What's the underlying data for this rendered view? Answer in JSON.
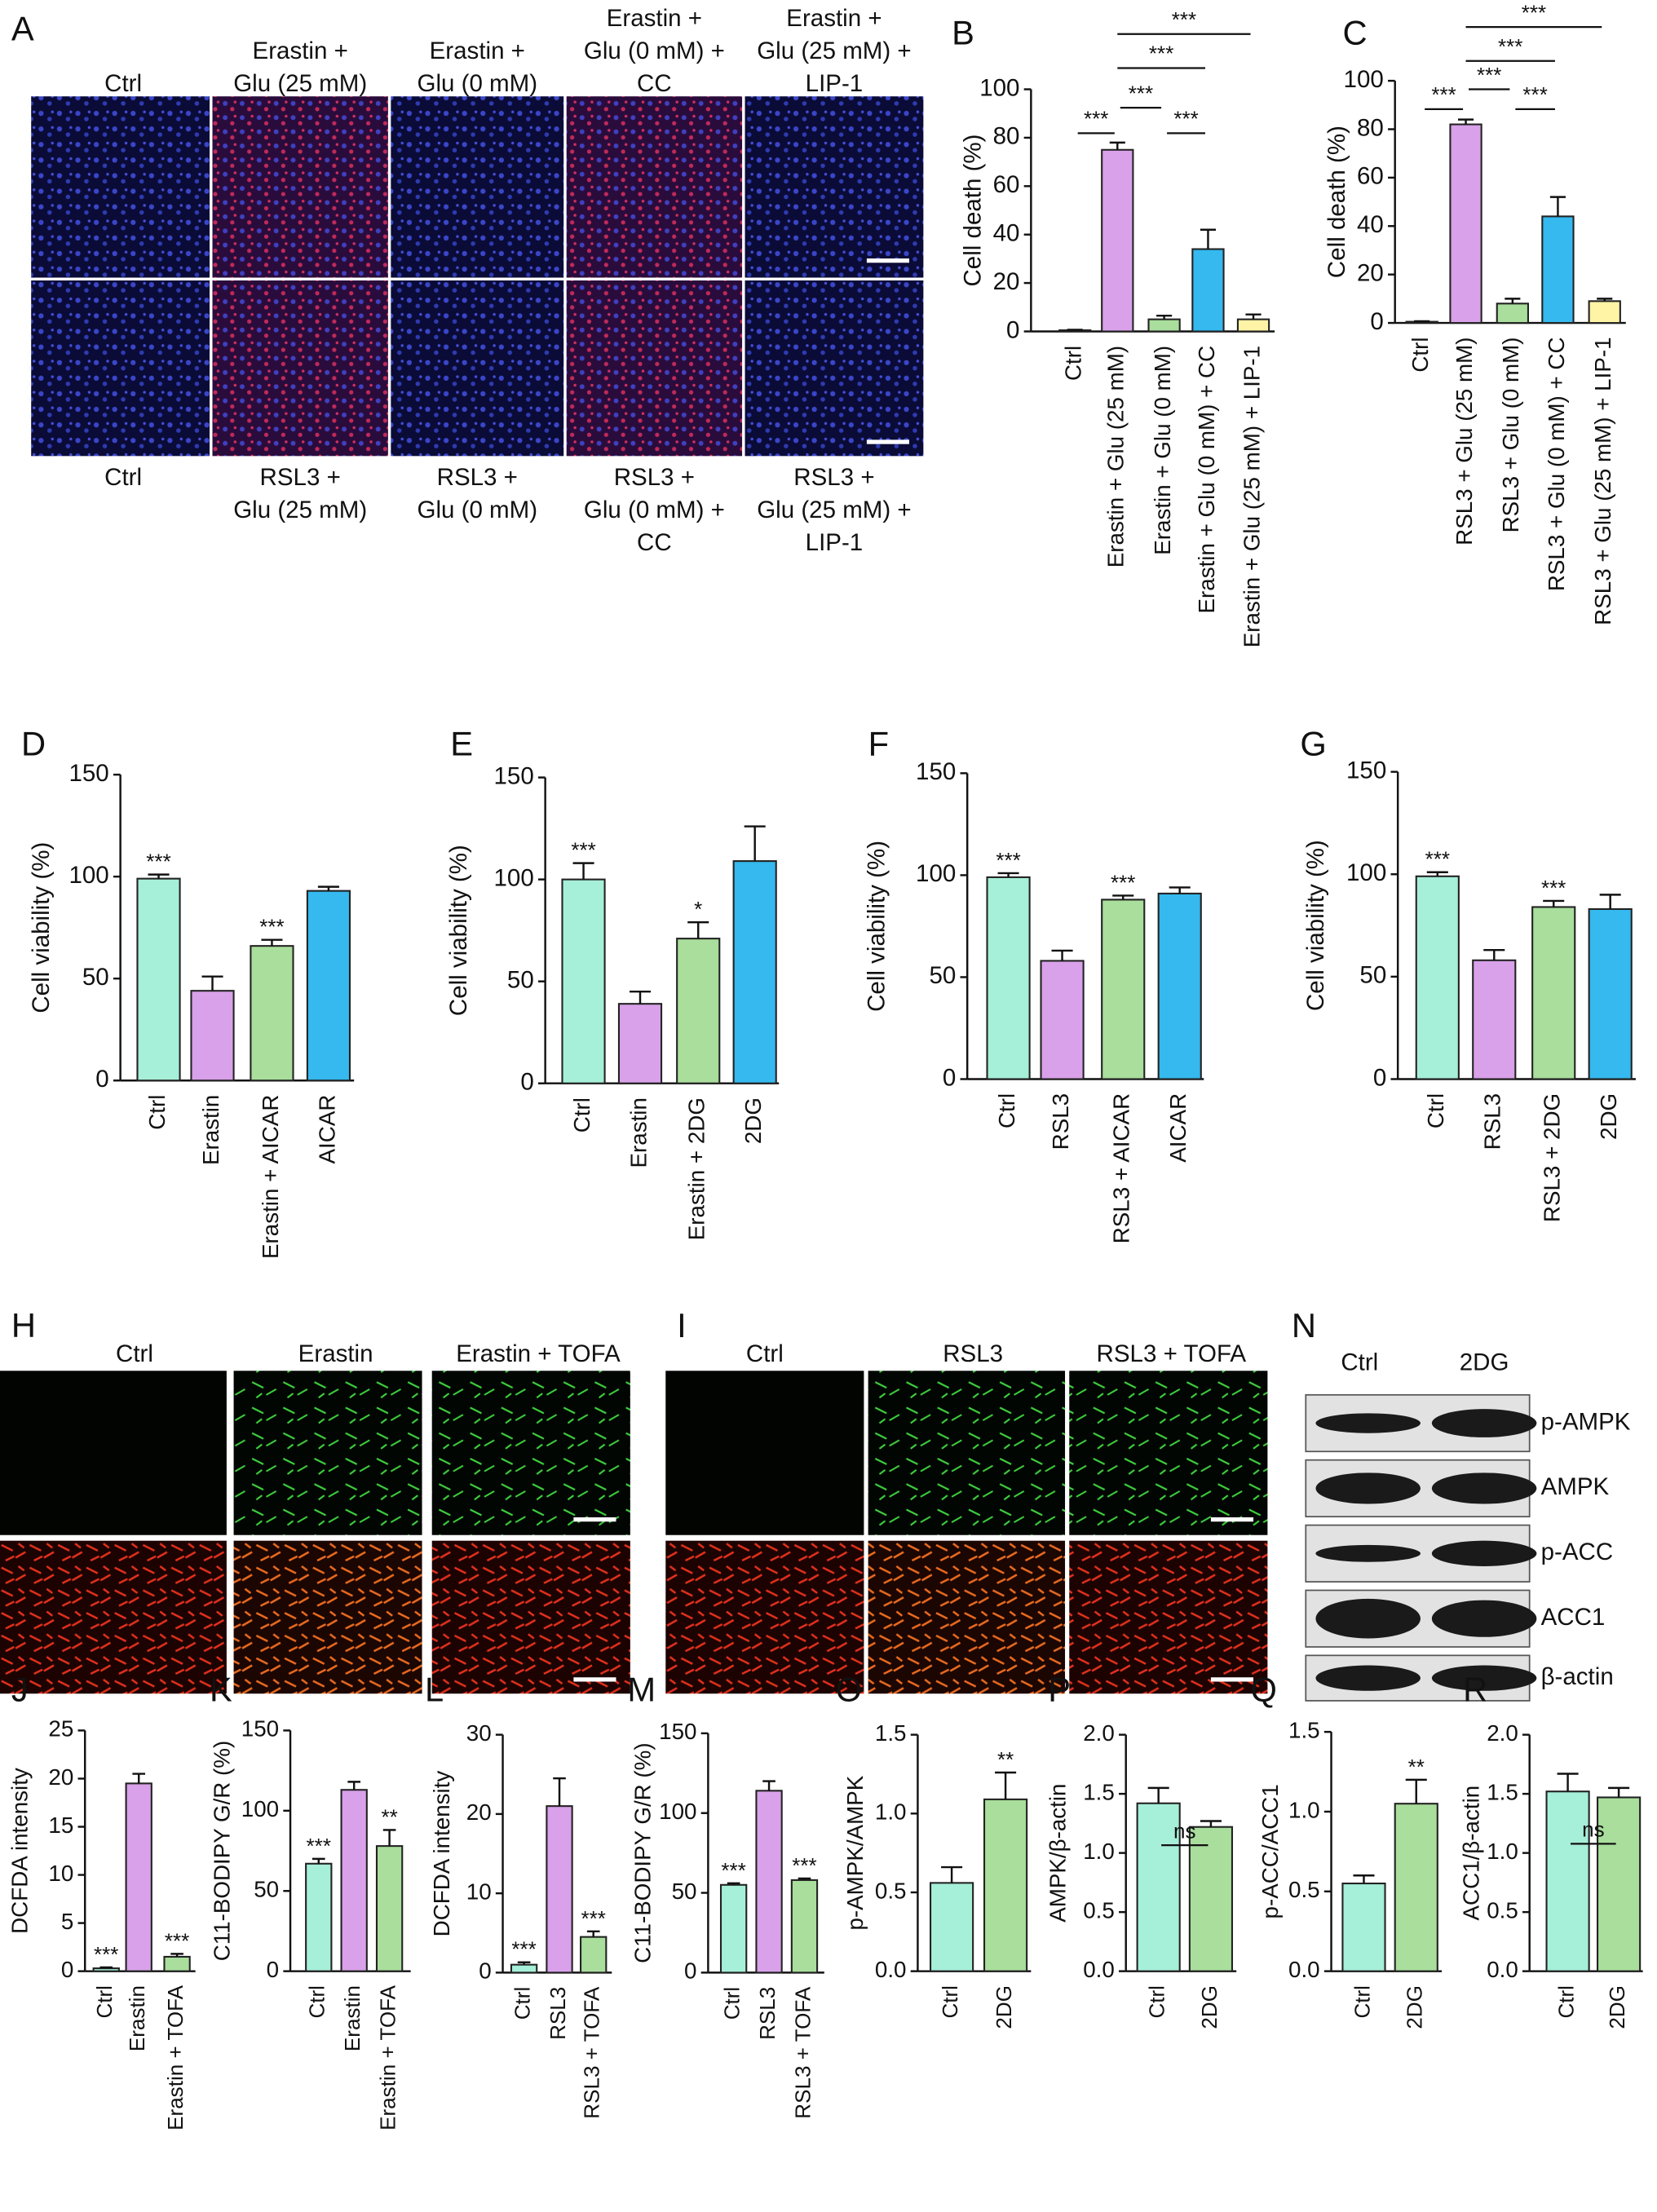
{
  "panels": {
    "A": {
      "panel": "A",
      "top_labels": [
        [
          "Ctrl"
        ],
        [
          "Erastin +",
          "Glu (25 mM)"
        ],
        [
          "Erastin +",
          "Glu (0 mM)"
        ],
        [
          "Erastin +",
          "Glu (0 mM) +",
          "CC"
        ],
        [
          "Erastin +",
          "Glu (25 mM) +",
          "LIP-1"
        ]
      ],
      "bottom_labels": [
        [
          "Ctrl"
        ],
        [
          "RSL3 +",
          "Glu (25 mM)"
        ],
        [
          "RSL3 +",
          "Glu (0 mM)"
        ],
        [
          "RSL3 +",
          "Glu (0 mM) +",
          "CC"
        ],
        [
          "RSL3 +",
          "Glu (25 mM) +",
          "LIP-1"
        ]
      ]
    },
    "H": {
      "panel": "H",
      "labels": [
        "Ctrl",
        "Erastin",
        "Erastin + TOFA"
      ]
    },
    "I": {
      "panel": "I",
      "labels": [
        "Ctrl",
        "RSL3",
        "RSL3 + TOFA"
      ]
    },
    "N": {
      "panel": "N",
      "lanes": [
        "Ctrl",
        "2DG"
      ],
      "bands": [
        "p-AMPK",
        "AMPK",
        "p-ACC",
        "ACC1",
        "β-actin"
      ]
    }
  },
  "chart_data": [
    {
      "panel": "B",
      "type": "bar",
      "ylabel": "Cell death (%)",
      "categories": [
        "Ctrl",
        "Erastin + Glu (25 mM)",
        "Erastin + Glu (0 mM)",
        "Erastin + Glu (0 mM) + CC",
        "Erastin + Glu (25 mM) + LIP-1"
      ],
      "values": [
        0.5,
        75,
        5,
        34,
        5
      ],
      "errors": [
        0.2,
        3,
        1.5,
        8,
        2
      ],
      "colors": [
        "#a6efd8",
        "#d9a1e9",
        "#a9de9c",
        "#35b9ee",
        "#fff3a6"
      ],
      "ylim": [
        0,
        100
      ],
      "yticks": [
        0,
        20,
        40,
        60,
        80,
        100
      ],
      "comparisons": [
        "***",
        "***",
        "***",
        "***",
        "***"
      ]
    },
    {
      "panel": "C",
      "type": "bar",
      "ylabel": "Cell death (%)",
      "categories": [
        "Ctrl",
        "RSL3 + Glu (25 mM)",
        "RSL3 + Glu (0 mM)",
        "RSL3 + Glu (0 mM) + CC",
        "RSL3 + Glu (25 mM) + LIP-1"
      ],
      "values": [
        0.5,
        82,
        8,
        44,
        9
      ],
      "errors": [
        0.2,
        2,
        2,
        8,
        1
      ],
      "colors": [
        "#a6efd8",
        "#d9a1e9",
        "#a9de9c",
        "#35b9ee",
        "#fff3a6"
      ],
      "ylim": [
        0,
        100
      ],
      "yticks": [
        0,
        20,
        40,
        60,
        80,
        100
      ],
      "comparisons": [
        "***",
        "***",
        "***",
        "***",
        "***"
      ]
    },
    {
      "panel": "D",
      "type": "bar",
      "ylabel": "Cell viability (%)",
      "categories": [
        "Ctrl",
        "Erastin",
        "Erastin + AICAR",
        "AICAR"
      ],
      "values": [
        99,
        44,
        66,
        93
      ],
      "errors": [
        2,
        7,
        3,
        2
      ],
      "colors": [
        "#a6efd8",
        "#d9a1e9",
        "#a9de9c",
        "#35b9ee"
      ],
      "ylim": [
        0,
        150
      ],
      "yticks": [
        0,
        50,
        100,
        150
      ],
      "significance": [
        "***",
        null,
        "***",
        null
      ]
    },
    {
      "panel": "E",
      "type": "bar",
      "ylabel": "Cell viability (%)",
      "categories": [
        "Ctrl",
        "Erastin",
        "Erastin + 2DG",
        "2DG"
      ],
      "values": [
        100,
        39,
        71,
        109
      ],
      "errors": [
        8,
        6,
        8,
        17
      ],
      "colors": [
        "#a6efd8",
        "#d9a1e9",
        "#a9de9c",
        "#35b9ee"
      ],
      "ylim": [
        0,
        150
      ],
      "yticks": [
        0,
        50,
        100,
        150
      ],
      "significance": [
        "***",
        null,
        "*",
        null
      ]
    },
    {
      "panel": "F",
      "type": "bar",
      "ylabel": "Cell viability (%)",
      "categories": [
        "Ctrl",
        "RSL3",
        "RSL3 + AICAR",
        "AICAR"
      ],
      "values": [
        99,
        58,
        88,
        91
      ],
      "errors": [
        2,
        5,
        2,
        3
      ],
      "colors": [
        "#a6efd8",
        "#d9a1e9",
        "#a9de9c",
        "#35b9ee"
      ],
      "ylim": [
        0,
        150
      ],
      "yticks": [
        0,
        50,
        100,
        150
      ],
      "significance": [
        "***",
        null,
        "***",
        null
      ]
    },
    {
      "panel": "G",
      "type": "bar",
      "ylabel": "Cell viability (%)",
      "categories": [
        "Ctrl",
        "RSL3",
        "RSL3 + 2DG",
        "2DG"
      ],
      "values": [
        99,
        58,
        84,
        83
      ],
      "errors": [
        2,
        5,
        3,
        7
      ],
      "colors": [
        "#a6efd8",
        "#d9a1e9",
        "#a9de9c",
        "#35b9ee"
      ],
      "ylim": [
        0,
        150
      ],
      "yticks": [
        0,
        50,
        100,
        150
      ],
      "significance": [
        "***",
        null,
        "***",
        null
      ]
    },
    {
      "panel": "J",
      "type": "bar",
      "ylabel": "DCFDA intensity",
      "categories": [
        "Ctrl",
        "Erastin",
        "Erastin + TOFA"
      ],
      "values": [
        0.3,
        19.5,
        1.5
      ],
      "errors": [
        0.1,
        1,
        0.3
      ],
      "colors": [
        "#a6efd8",
        "#d9a1e9",
        "#a9de9c"
      ],
      "ylim": [
        0,
        25
      ],
      "yticks": [
        0,
        5,
        10,
        15,
        20,
        25
      ],
      "significance": [
        "***",
        null,
        "***"
      ]
    },
    {
      "panel": "K",
      "type": "bar",
      "ylabel": "C11-BODIPY G/R (%)",
      "categories": [
        "Ctrl",
        "Erastin",
        "Erastin + TOFA"
      ],
      "values": [
        67,
        113,
        78
      ],
      "errors": [
        3,
        5,
        10
      ],
      "colors": [
        "#a6efd8",
        "#d9a1e9",
        "#a9de9c"
      ],
      "ylim": [
        0,
        150
      ],
      "yticks": [
        0,
        50,
        100,
        150
      ],
      "significance": [
        "***",
        null,
        "**"
      ]
    },
    {
      "panel": "L",
      "type": "bar",
      "ylabel": "DCFDA intensity",
      "categories": [
        "Ctrl",
        "RSL3",
        "RSL3 + TOFA"
      ],
      "values": [
        1,
        21,
        4.5
      ],
      "errors": [
        0.3,
        3.5,
        0.7
      ],
      "colors": [
        "#a6efd8",
        "#d9a1e9",
        "#a9de9c"
      ],
      "ylim": [
        0,
        30
      ],
      "yticks": [
        0,
        10,
        20,
        30
      ],
      "significance": [
        "***",
        null,
        "***"
      ]
    },
    {
      "panel": "M",
      "type": "bar",
      "ylabel": "C11-BODIPY G/R (%)",
      "categories": [
        "Ctrl",
        "RSL3",
        "RSL3 + TOFA"
      ],
      "values": [
        55,
        114,
        58
      ],
      "errors": [
        1,
        6,
        1
      ],
      "colors": [
        "#a6efd8",
        "#d9a1e9",
        "#a9de9c"
      ],
      "ylim": [
        0,
        150
      ],
      "yticks": [
        0,
        50,
        100,
        150
      ],
      "significance": [
        "***",
        null,
        "***"
      ]
    },
    {
      "panel": "O",
      "type": "bar",
      "ylabel": "p-AMPK/AMPK",
      "categories": [
        "Ctrl",
        "2DG"
      ],
      "values": [
        0.56,
        1.09
      ],
      "errors": [
        0.1,
        0.17
      ],
      "colors": [
        "#a6efd8",
        "#a9de9c"
      ],
      "ylim": [
        0,
        1.5
      ],
      "yticks": [
        {
          "value": 0,
          "label": "0.0"
        },
        0.5,
        {
          "value": 1,
          "label": "1.0"
        },
        1.5
      ],
      "significance": [
        null,
        "**"
      ]
    },
    {
      "panel": "P",
      "type": "bar",
      "ylabel": "AMPK/β-actin",
      "categories": [
        "Ctrl",
        "2DG"
      ],
      "values": [
        1.42,
        1.22
      ],
      "errors": [
        0.13,
        0.05
      ],
      "colors": [
        "#a6efd8",
        "#a9de9c"
      ],
      "ylim": [
        0,
        2
      ],
      "yticks": [
        {
          "value": 0,
          "label": "0.0"
        },
        0.5,
        {
          "value": 1,
          "label": "1.0"
        },
        1.5,
        {
          "value": 2,
          "label": "2.0"
        }
      ],
      "comparisons": [
        "ns"
      ]
    },
    {
      "panel": "Q",
      "type": "bar",
      "ylabel": "p-ACC/ACC1",
      "categories": [
        "Ctrl",
        "2DG"
      ],
      "values": [
        0.55,
        1.05
      ],
      "errors": [
        0.05,
        0.15
      ],
      "colors": [
        "#a6efd8",
        "#a9de9c"
      ],
      "ylim": [
        0,
        1.5
      ],
      "yticks": [
        {
          "value": 0,
          "label": "0.0"
        },
        0.5,
        {
          "value": 1,
          "label": "1.0"
        },
        1.5
      ],
      "significance": [
        null,
        "**"
      ]
    },
    {
      "panel": "R",
      "type": "bar",
      "ylabel": "ACC1/β-actin",
      "categories": [
        "Ctrl",
        "2DG"
      ],
      "values": [
        1.52,
        1.47
      ],
      "errors": [
        0.15,
        0.08
      ],
      "colors": [
        "#a6efd8",
        "#a9de9c"
      ],
      "ylim": [
        0,
        2
      ],
      "yticks": [
        {
          "value": 0,
          "label": "0.0"
        },
        0.5,
        {
          "value": 1,
          "label": "1.0"
        },
        1.5,
        {
          "value": 2,
          "label": "2.0"
        }
      ],
      "comparisons": [
        "ns"
      ]
    }
  ]
}
